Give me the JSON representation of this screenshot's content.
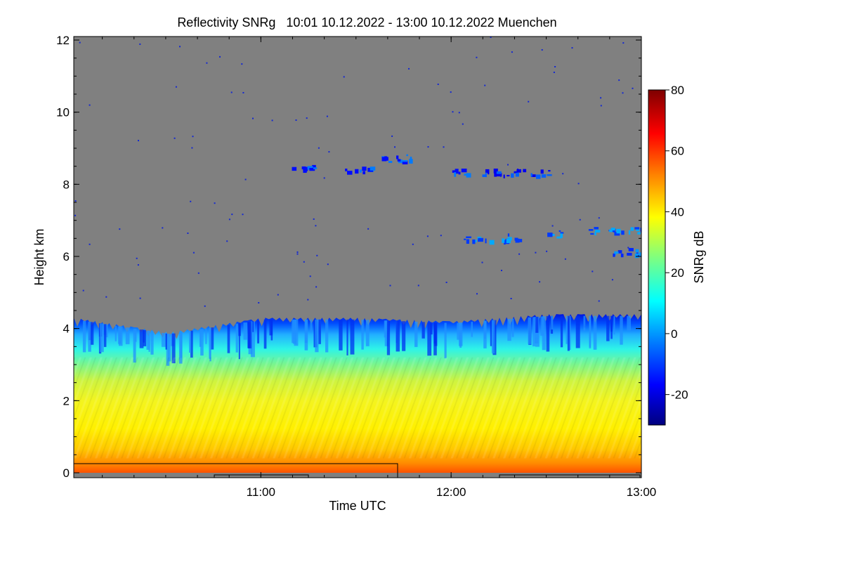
{
  "chart_data": {
    "type": "heatmap",
    "title": "Reflectivity SNRg   10:01 10.12.2022 - 13:00 10.12.2022 Muenchen",
    "xlabel": "Time UTC",
    "ylabel": "Height km",
    "xlim": [
      "10:01",
      "13:00"
    ],
    "ylim": [
      0,
      12
    ],
    "x_ticks": [
      "11:00",
      "12:00",
      "13:00"
    ],
    "y_ticks": [
      "0",
      "2",
      "4",
      "6",
      "8",
      "10",
      "12"
    ],
    "colorbar": {
      "label": "SNRg dB",
      "range": [
        -30,
        80
      ],
      "ticks": [
        "-20",
        "0",
        "20",
        "40",
        "60",
        "80"
      ],
      "colormap": [
        "#00007f",
        "#0000ff",
        "#007fff",
        "#00ffff",
        "#7fff7f",
        "#ffff00",
        "#ff7f00",
        "#ff0000",
        "#7f0000"
      ]
    },
    "background_color": "#808080",
    "layers": [
      {
        "name": "main-cloud-layer",
        "time_start": "10:01",
        "time_end": "13:00",
        "base_km": 0.0,
        "top_km": [
          4.3,
          3.9,
          4.3,
          4.3,
          4.2,
          4.4,
          4.4
        ],
        "snr_db_at_surface": 55,
        "snr_db_at_1km": 42,
        "snr_db_at_2km": 37,
        "snr_db_at_3km": 20,
        "snr_db_at_top": -15
      },
      {
        "name": "cirrus-8km-a",
        "time_start": "11:09",
        "time_end": "11:18",
        "height_km": 8.4,
        "snr_db": -15
      },
      {
        "name": "cirrus-8km-b",
        "time_start": "11:26",
        "time_end": "11:35",
        "height_km": 8.4,
        "snr_db": -15
      },
      {
        "name": "cirrus-8.7km",
        "time_start": "11:38",
        "time_end": "11:50",
        "height_km": 8.7,
        "snr_db": -15
      },
      {
        "name": "cirrus-8km-c",
        "time_start": "12:00",
        "time_end": "12:06",
        "height_km": 8.3,
        "snr_db": -15
      },
      {
        "name": "cirrus-8km-d",
        "time_start": "12:09",
        "time_end": "12:31",
        "height_km": 8.3,
        "snr_db": -18
      },
      {
        "name": "cloud-6.5km-a",
        "time_start": "12:04",
        "time_end": "12:23",
        "height_km": 6.5,
        "snr_db": -10
      },
      {
        "name": "cloud-6.5km-b",
        "time_start": "12:30",
        "time_end": "12:36",
        "height_km": 6.6,
        "snr_db": -10
      },
      {
        "name": "cloud-6.7km-c",
        "time_start": "12:41",
        "time_end": "13:00",
        "height_km": 6.7,
        "snr_db": -10
      },
      {
        "name": "cloud-6.1km-d",
        "time_start": "12:50",
        "time_end": "13:00",
        "height_km": 6.1,
        "snr_db": -12
      }
    ]
  }
}
